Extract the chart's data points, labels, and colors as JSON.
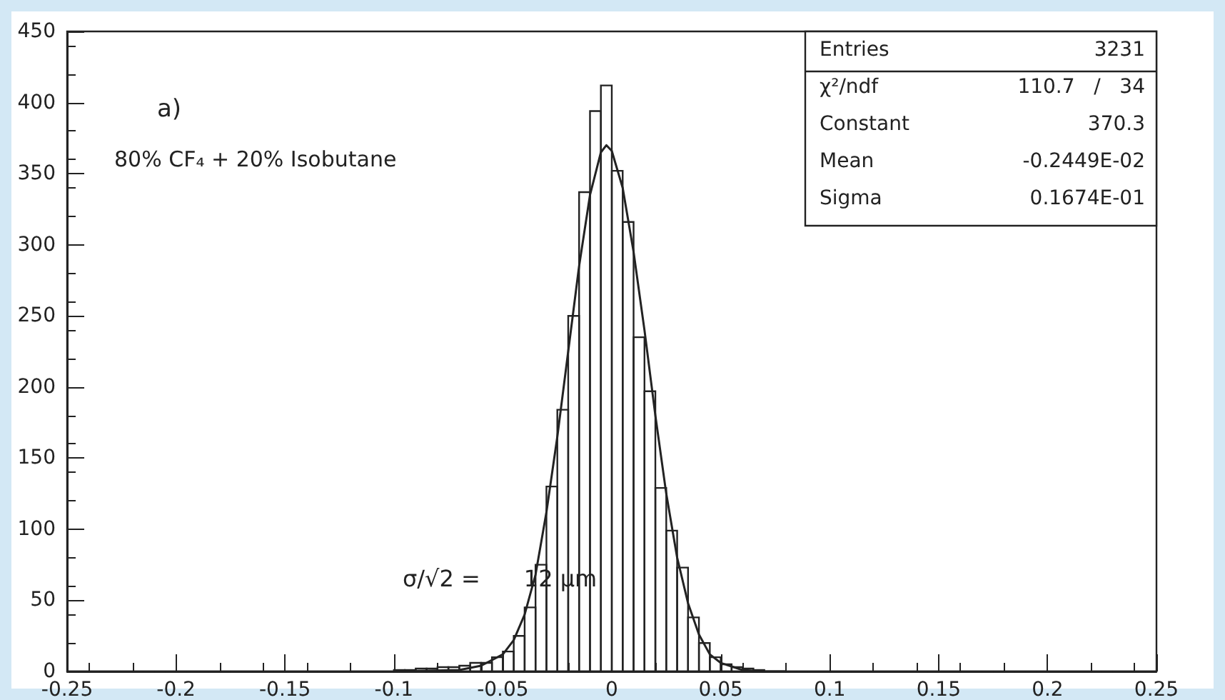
{
  "chart_data": {
    "type": "histogram",
    "bins": [
      -0.25,
      -0.245,
      -0.24,
      -0.235,
      -0.23,
      -0.225,
      -0.22,
      -0.215,
      -0.21,
      -0.205,
      -0.2,
      -0.195,
      -0.19,
      -0.185,
      -0.18,
      -0.175,
      -0.17,
      -0.165,
      -0.16,
      -0.155,
      -0.15,
      -0.145,
      -0.14,
      -0.135,
      -0.13,
      -0.125,
      -0.12,
      -0.115,
      -0.11,
      -0.105,
      -0.1,
      -0.095,
      -0.09,
      -0.085,
      -0.08,
      -0.075,
      -0.07,
      -0.065,
      -0.06,
      -0.055,
      -0.05,
      -0.045,
      -0.04,
      -0.035,
      -0.03,
      -0.025,
      -0.02,
      -0.015,
      -0.01,
      -0.005,
      0,
      0.005,
      0.01,
      0.015,
      0.02,
      0.025,
      0.03,
      0.035,
      0.04,
      0.045,
      0.05,
      0.055,
      0.06,
      0.065,
      0.07,
      0.075,
      0.08,
      0.085,
      0.09,
      0.095,
      0.1,
      0.105,
      0.11,
      0.115,
      0.12,
      0.125,
      0.13,
      0.135,
      0.14,
      0.145,
      0.15,
      0.155,
      0.16,
      0.165,
      0.17,
      0.175,
      0.18,
      0.185,
      0.19,
      0.195,
      0.2,
      0.205,
      0.21,
      0.215,
      0.22,
      0.225,
      0.23,
      0.235,
      0.24,
      0.245,
      0.25
    ],
    "series": [
      {
        "color": "#222222",
        "values": [
          0,
          0,
          0,
          0,
          0,
          0,
          0,
          0,
          0,
          0,
          0,
          0,
          0,
          0,
          0,
          0,
          0,
          0,
          0,
          0,
          0,
          0,
          0,
          0,
          0,
          0,
          0,
          0,
          0,
          0,
          1,
          1,
          2,
          2,
          3,
          3,
          4,
          6,
          6,
          10,
          14,
          25,
          45,
          75,
          130,
          184,
          250,
          337,
          394,
          412,
          352,
          316,
          235,
          197,
          129,
          99,
          73,
          38,
          20,
          10,
          5,
          3,
          2,
          1,
          0,
          0,
          0,
          0,
          0,
          0,
          0,
          0,
          0,
          0,
          0,
          0,
          0,
          0,
          0,
          0,
          0,
          0,
          0,
          0,
          0,
          0,
          0,
          0,
          0,
          0,
          0,
          0,
          0,
          0,
          0,
          0,
          0,
          0,
          0,
          0
        ]
      },
      {
        "type": "line",
        "color": "#222222",
        "x": [
          -0.1,
          -0.07,
          -0.06,
          -0.05,
          -0.045,
          -0.04,
          -0.035,
          -0.03,
          -0.025,
          -0.02,
          -0.015,
          -0.01,
          -0.005,
          -0.0025,
          0,
          0.005,
          0.01,
          0.015,
          0.02,
          0.025,
          0.03,
          0.035,
          0.04,
          0.045,
          0.05,
          0.06,
          0.07,
          0.08
        ],
        "values": [
          0,
          1,
          4,
          12,
          22,
          40,
          68,
          112,
          165,
          225,
          285,
          335,
          365,
          370,
          366,
          340,
          295,
          240,
          180,
          125,
          80,
          48,
          26,
          12,
          6,
          1,
          0,
          0
        ]
      }
    ],
    "xlim": [
      -0.25,
      0.25
    ],
    "xticks": [
      -0.25,
      -0.2,
      -0.15,
      -0.1,
      -0.05,
      0,
      0.05,
      0.1,
      0.15,
      0.2,
      0.25
    ],
    "ylim": [
      0,
      450
    ],
    "yticks": [
      0,
      50,
      100,
      150,
      200,
      250,
      300,
      350,
      400,
      450
    ],
    "grid": false,
    "marker": "none",
    "line_style": "solid",
    "annotations": [
      "a)",
      "80% CF₄ + 20% Isobutane",
      "σ/√2 =      12 μm",
      "Entries",
      "3231",
      "χ²/ndf",
      "110.7   /   34",
      "Constant",
      "370.3",
      "Mean",
      "-0.2449E-02",
      "Sigma",
      "0.1674E-01"
    ]
  }
}
